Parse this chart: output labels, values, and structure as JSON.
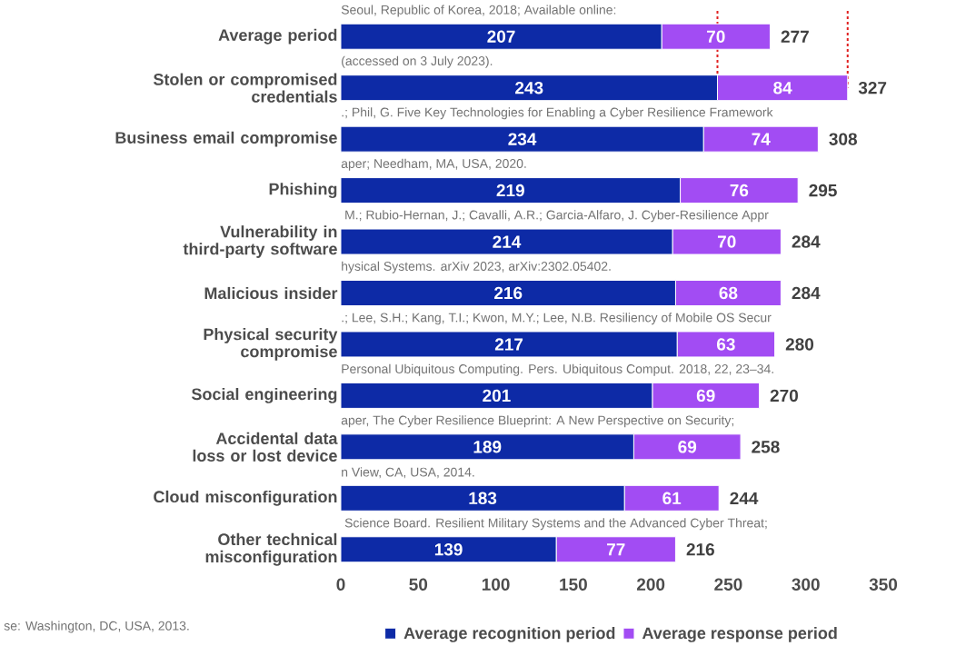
{
  "chart_data": {
    "type": "bar",
    "orientation": "horizontal",
    "stacked": true,
    "categories": [
      "Average period",
      "Stolen or compromised credentials",
      "Business email compromise",
      "Phishing",
      "Vulnerability in third-party software",
      "Malicious insider",
      "Physical security compromise",
      "Social engineering",
      "Accidental data loss or lost device",
      "Cloud misconfiguration",
      "Other technical misconfiguration"
    ],
    "series": [
      {
        "name": "Average recognition period",
        "color": "#0d2aa6",
        "values": [
          207,
          243,
          234,
          219,
          214,
          216,
          217,
          201,
          189,
          183,
          139
        ]
      },
      {
        "name": "Average response period",
        "color": "#a24cf3",
        "values": [
          70,
          84,
          74,
          76,
          70,
          68,
          63,
          69,
          69,
          61,
          77
        ]
      }
    ],
    "totals": [
      "277",
      "327",
      "308",
      "295",
      "284",
      "284",
      "280",
      "270",
      "258",
      "244",
      "216"
    ],
    "data_labels": true,
    "xlim": [
      0,
      350
    ],
    "xticks": [
      0,
      50,
      100,
      150,
      200,
      250,
      300,
      350
    ],
    "ref_lines": [
      {
        "axis": "x",
        "value": 243,
        "color": "#e02020",
        "line_style": "dashed"
      },
      {
        "axis": "x",
        "value": 327,
        "color": "#e02020",
        "line_style": "dashed"
      }
    ],
    "legend": "bottom",
    "annotations": [
      "Seoul, Republic of Korea, 2018; Available online:",
      "(accessed on 3 July 2023).",
      ".; Phil, G. Five Key Technologies for Enabling a Cyber Resilience Framework",
      "aper; Needham, MA, USA, 2020.",
      " M.; Rubio-Hernan, J.; Cavalli, A.R.; Garcia-Alfaro, J. Cyber-Resilience Appr",
      "hysical Systems. arXiv 2023, arXiv:2302.05402.",
      ".; Lee, S.H.; Kang, T.I.; Kwon, M.Y.; Lee, N.B. Resiliency of Mobile OS Secur",
      "Personal Ubiquitous Computing. Pers. Ubiquitous Comput. 2018, 22, 23–34.",
      "aper, The Cyber Resilience Blueprint: A New Perspective on Security;",
      "n View, CA, USA, 2014.",
      " Science Board. Resilient Military Systems and the Advanced Cyber Threat;",
      "se: Washington, DC, USA, 2013."
    ]
  }
}
